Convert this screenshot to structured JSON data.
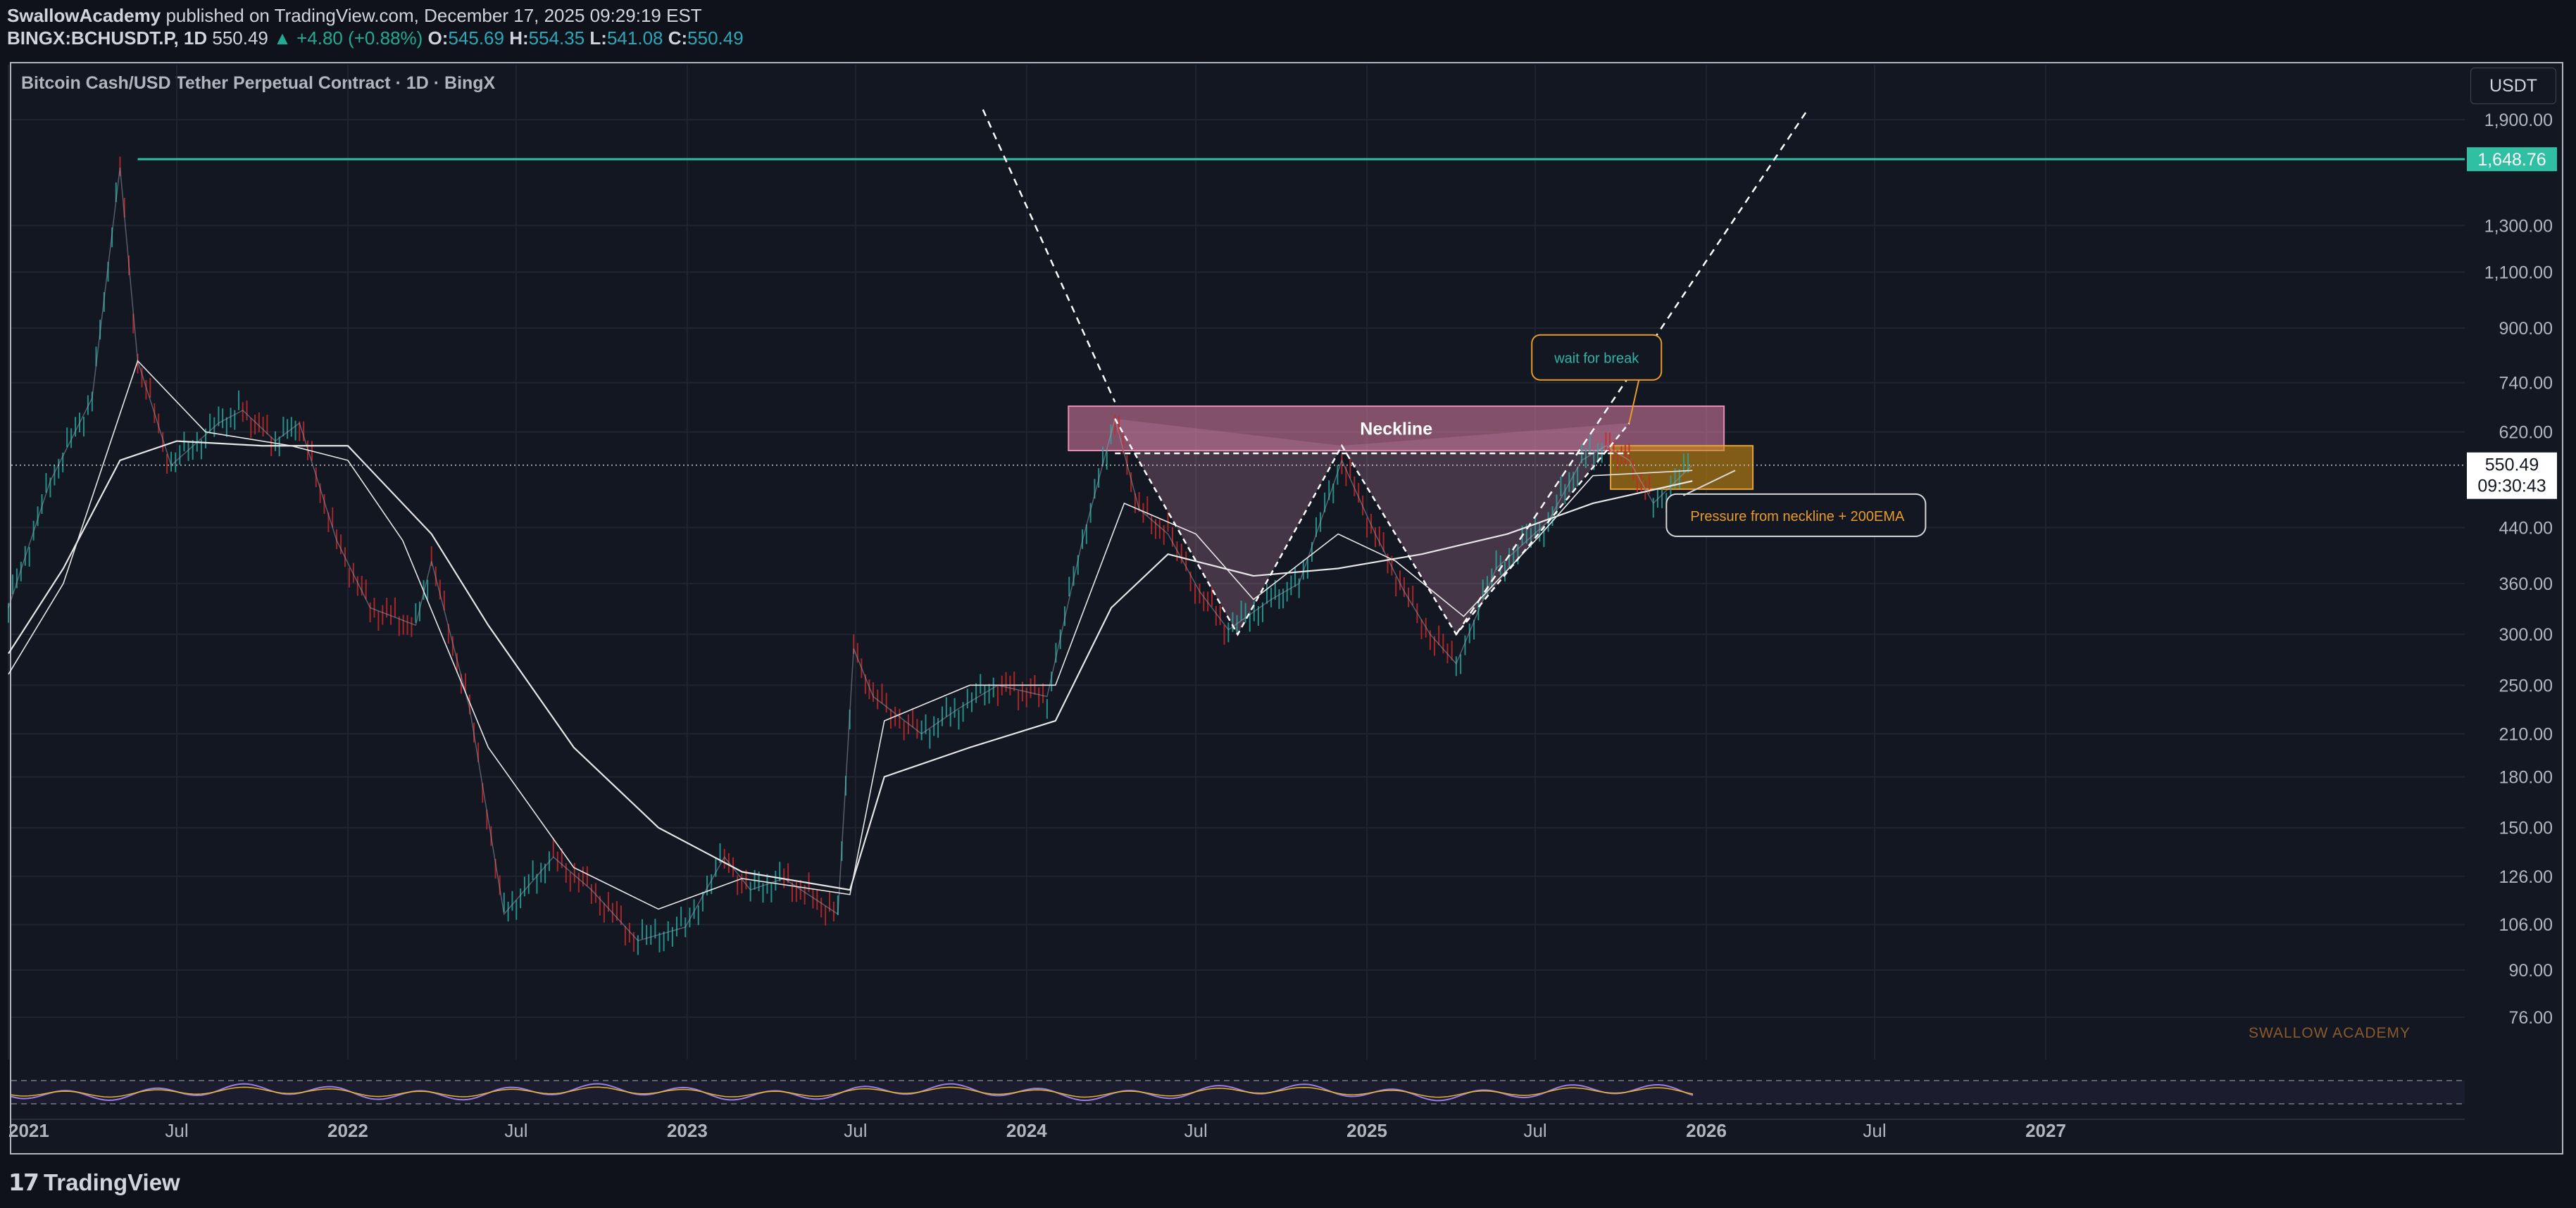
{
  "header": {
    "author": "SwallowAcademy",
    "published_text": "published on TradingView.com, December 17, 2025 09:29:19 EST",
    "symbol": "BINGX:BCHUSDT.P, 1D",
    "last": "550.49",
    "change": "▲ +4.80 (+0.88%)",
    "o_label": "O:",
    "o": "545.69",
    "h_label": "H:",
    "h": "554.35",
    "l_label": "L:",
    "l": "541.08",
    "c_label": "C:",
    "c": "550.49"
  },
  "chart_title": "Bitcoin Cash/USD Tether Perpetual Contract · 1D · BingX",
  "currency_button": "USDT",
  "footer_logo": "TradingView",
  "chart_data": {
    "type": "line",
    "y_scale": "log",
    "y_ticks": [
      76,
      90,
      106,
      126,
      150,
      180,
      210,
      250,
      300,
      360,
      440,
      620,
      740,
      900,
      1100,
      1300,
      1900
    ],
    "y_tick_labels": [
      "76.00",
      "90.00",
      "106.00",
      "126.00",
      "150.00",
      "180.00",
      "210.00",
      "250.00",
      "300.00",
      "360.00",
      "440.00",
      "620.00",
      "740.00",
      "900.00",
      "1,100.00",
      "1,300.00",
      "1,900.00"
    ],
    "x_ticks": [
      "2021",
      "Jul",
      "2022",
      "Jul",
      "2023",
      "Jul",
      "2024",
      "Jul",
      "2025",
      "Jul",
      "2026",
      "Jul",
      "2027"
    ],
    "x_tick_dates": [
      "2021-01-01",
      "2021-07-01",
      "2022-01-01",
      "2022-07-01",
      "2023-01-01",
      "2023-07-01",
      "2024-01-01",
      "2024-07-01",
      "2025-01-01",
      "2025-07-01",
      "2026-01-01",
      "2026-07-01",
      "2027-01-01"
    ],
    "price_series": {
      "dates": [
        "2021-01-01",
        "2021-02-15",
        "2021-04-01",
        "2021-05-01",
        "2021-05-20",
        "2021-06-25",
        "2021-08-15",
        "2021-09-10",
        "2021-10-15",
        "2021-11-10",
        "2021-12-20",
        "2022-01-25",
        "2022-03-15",
        "2022-04-01",
        "2022-05-12",
        "2022-06-18",
        "2022-08-10",
        "2022-09-20",
        "2022-11-09",
        "2022-12-30",
        "2023-02-10",
        "2023-03-10",
        "2023-04-15",
        "2023-06-12",
        "2023-06-29",
        "2023-07-20",
        "2023-09-10",
        "2023-10-20",
        "2023-12-01",
        "2024-01-23",
        "2024-03-01",
        "2024-04-05",
        "2024-05-01",
        "2024-06-01",
        "2024-07-05",
        "2024-08-05",
        "2024-09-20",
        "2024-10-20",
        "2024-12-05",
        "2025-01-10",
        "2025-02-10",
        "2025-03-10",
        "2025-04-07",
        "2025-05-20",
        "2025-07-15",
        "2025-08-20",
        "2025-09-15",
        "2025-10-10",
        "2025-11-05",
        "2025-12-17"
      ],
      "values": [
        330,
        520,
        700,
        1600,
        800,
        550,
        640,
        670,
        600,
        640,
        420,
        330,
        310,
        390,
        230,
        110,
        135,
        120,
        100,
        105,
        135,
        120,
        125,
        110,
        285,
        240,
        210,
        230,
        250,
        240,
        420,
        650,
        470,
        430,
        350,
        305,
        340,
        360,
        560,
        430,
        350,
        300,
        270,
        380,
        450,
        560,
        590,
        560,
        480,
        550.49
      ]
    },
    "ema_slow": {
      "dates": [
        "2021-01-01",
        "2021-03-01",
        "2021-05-01",
        "2021-07-01",
        "2021-10-01",
        "2022-01-01",
        "2022-04-01",
        "2022-06-01",
        "2022-09-01",
        "2022-12-01",
        "2023-03-01",
        "2023-06-25",
        "2023-08-01",
        "2023-11-01",
        "2024-02-01",
        "2024-04-01",
        "2024-06-01",
        "2024-09-01",
        "2024-12-01",
        "2025-03-01",
        "2025-06-01",
        "2025-09-01",
        "2025-12-17"
      ],
      "values": [
        280,
        380,
        560,
        600,
        590,
        590,
        430,
        310,
        200,
        150,
        128,
        120,
        180,
        200,
        220,
        330,
        400,
        370,
        380,
        400,
        430,
        480,
        520
      ]
    },
    "ema_fast": {
      "dates": [
        "2021-01-01",
        "2021-03-01",
        "2021-05-20",
        "2021-08-01",
        "2021-11-01",
        "2022-01-01",
        "2022-03-01",
        "2022-06-01",
        "2022-09-01",
        "2022-12-01",
        "2023-03-01",
        "2023-06-25",
        "2023-08-01",
        "2023-11-01",
        "2024-02-01",
        "2024-04-15",
        "2024-07-01",
        "2024-09-01",
        "2024-12-01",
        "2025-02-01",
        "2025-04-15",
        "2025-07-01",
        "2025-09-01",
        "2025-12-17"
      ],
      "values": [
        260,
        360,
        800,
        620,
        590,
        560,
        420,
        200,
        130,
        112,
        125,
        118,
        220,
        250,
        250,
        480,
        430,
        340,
        430,
        390,
        320,
        420,
        530,
        540
      ]
    },
    "horizontal_level": 1648.76,
    "horizontal_level_label": "1,648.76",
    "last_price_label": "550.49",
    "countdown_label": "09:30:43",
    "neckline_zone": {
      "label": "Neckline",
      "from": "2024-02-15",
      "to": "2026-01-20",
      "low": 580,
      "high": 680
    },
    "pressure_zone": {
      "from": "2025-09-20",
      "to": "2026-02-20",
      "low": 505,
      "high": 590
    },
    "pattern_points": {
      "dates": [
        "2024-04-05",
        "2024-08-15",
        "2024-12-05",
        "2025-04-07",
        "2025-10-10"
      ],
      "values": [
        650,
        300,
        590,
        300,
        640
      ]
    },
    "trend_line_down": {
      "dates": [
        "2023-11-15",
        "2024-04-05"
      ],
      "values": [
        1970,
        690
      ]
    },
    "trend_line_up": {
      "dates": [
        "2025-04-07",
        "2026-04-20"
      ],
      "values": [
        300,
        1970
      ]
    },
    "annotations": [
      {
        "text": "wait for break",
        "date": "2025-09-05",
        "value": 810
      },
      {
        "text": "Pressure from neckline + 200EMA",
        "date": "2026-04-15",
        "value": 460
      }
    ],
    "watermark": "SWALLOW ACADEMY",
    "colors": {
      "background": "#131722",
      "horizontal_level": "#2fbfa3",
      "neckline_fill": "#e07fa6",
      "pressure_fill": "#c98a0f",
      "annotation_text": "#e69b2a",
      "annotation_text_alt": "#33b3a5",
      "bull": "#26a69a",
      "bear": "#c62828",
      "rsi": "#9c7ce8"
    }
  }
}
